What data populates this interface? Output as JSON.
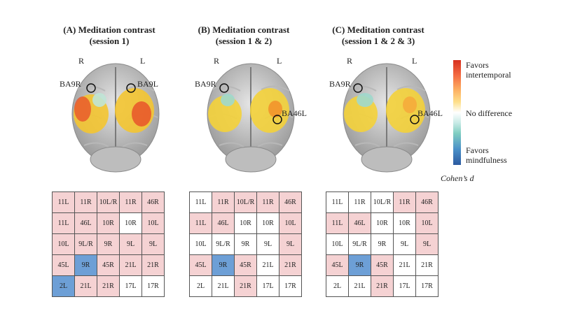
{
  "panels": [
    {
      "title_line1": "(A) Meditation contrast",
      "title_line2": "(session 1)",
      "right_label": "R",
      "left_label": "L",
      "markers": [
        "BA9R",
        "BA9L"
      ],
      "grid": [
        [
          [
            "11L",
            "p"
          ],
          [
            "11R",
            "p"
          ],
          [
            "10L/R",
            "p"
          ],
          [
            "11R",
            "p"
          ],
          [
            "46R",
            "p"
          ]
        ],
        [
          [
            "11L",
            "p"
          ],
          [
            "46L",
            "p"
          ],
          [
            "10R",
            "p"
          ],
          [
            "10R",
            "w"
          ],
          [
            "10L",
            "p"
          ]
        ],
        [
          [
            "10L",
            "p"
          ],
          [
            "9L/R",
            "p"
          ],
          [
            "9R",
            "p"
          ],
          [
            "9L",
            "p"
          ],
          [
            "9L",
            "p"
          ]
        ],
        [
          [
            "45L",
            "p"
          ],
          [
            "9R",
            "b"
          ],
          [
            "45R",
            "p"
          ],
          [
            "21L",
            "p"
          ],
          [
            "21R",
            "p"
          ]
        ],
        [
          [
            "2L",
            "b"
          ],
          [
            "21L",
            "p"
          ],
          [
            "21R",
            "p"
          ],
          [
            "17L",
            "w"
          ],
          [
            "17R",
            "w"
          ]
        ]
      ]
    },
    {
      "title_line1": "(B) Meditation contrast",
      "title_line2": "(session 1 & 2)",
      "right_label": "R",
      "left_label": "L",
      "markers": [
        "BA9R",
        "BA46L"
      ],
      "grid": [
        [
          [
            "11L",
            "w"
          ],
          [
            "11R",
            "p"
          ],
          [
            "10L/R",
            "p"
          ],
          [
            "11R",
            "p"
          ],
          [
            "46R",
            "p"
          ]
        ],
        [
          [
            "11L",
            "p"
          ],
          [
            "46L",
            "p"
          ],
          [
            "10R",
            "w"
          ],
          [
            "10R",
            "w"
          ],
          [
            "10L",
            "p"
          ]
        ],
        [
          [
            "10L",
            "w"
          ],
          [
            "9L/R",
            "w"
          ],
          [
            "9R",
            "w"
          ],
          [
            "9L",
            "w"
          ],
          [
            "9L",
            "p"
          ]
        ],
        [
          [
            "45L",
            "p"
          ],
          [
            "9R",
            "b"
          ],
          [
            "45R",
            "p"
          ],
          [
            "21L",
            "w"
          ],
          [
            "21R",
            "p"
          ]
        ],
        [
          [
            "2L",
            "w"
          ],
          [
            "21L",
            "w"
          ],
          [
            "21R",
            "p"
          ],
          [
            "17L",
            "w"
          ],
          [
            "17R",
            "w"
          ]
        ]
      ]
    },
    {
      "title_line1": "(C) Meditation contrast",
      "title_line2": "(session 1 & 2 & 3)",
      "right_label": "R",
      "left_label": "L",
      "markers": [
        "BA9R",
        "BA46L"
      ],
      "grid": [
        [
          [
            "11L",
            "w"
          ],
          [
            "11R",
            "w"
          ],
          [
            "10L/R",
            "w"
          ],
          [
            "11R",
            "p"
          ],
          [
            "46R",
            "p"
          ]
        ],
        [
          [
            "11L",
            "p"
          ],
          [
            "46L",
            "p"
          ],
          [
            "10R",
            "w"
          ],
          [
            "10R",
            "w"
          ],
          [
            "10L",
            "p"
          ]
        ],
        [
          [
            "10L",
            "w"
          ],
          [
            "9L/R",
            "w"
          ],
          [
            "9R",
            "w"
          ],
          [
            "9L",
            "w"
          ],
          [
            "9L",
            "p"
          ]
        ],
        [
          [
            "45L",
            "p"
          ],
          [
            "9R",
            "b"
          ],
          [
            "45R",
            "p"
          ],
          [
            "21L",
            "w"
          ],
          [
            "21R",
            "w"
          ]
        ],
        [
          [
            "2L",
            "w"
          ],
          [
            "21L",
            "w"
          ],
          [
            "21R",
            "p"
          ],
          [
            "17L",
            "w"
          ],
          [
            "17R",
            "w"
          ]
        ]
      ]
    }
  ],
  "legend": {
    "top_line1": "Favors",
    "top_line2": "intertemporal",
    "middle": "No difference",
    "bottom_line1": "Favors",
    "bottom_line2": "mindfulness",
    "caption": "Cohen’s d",
    "colors": {
      "top": "#d7301f",
      "mid": "#ffffff",
      "bottom": "#2c5aa0"
    }
  }
}
